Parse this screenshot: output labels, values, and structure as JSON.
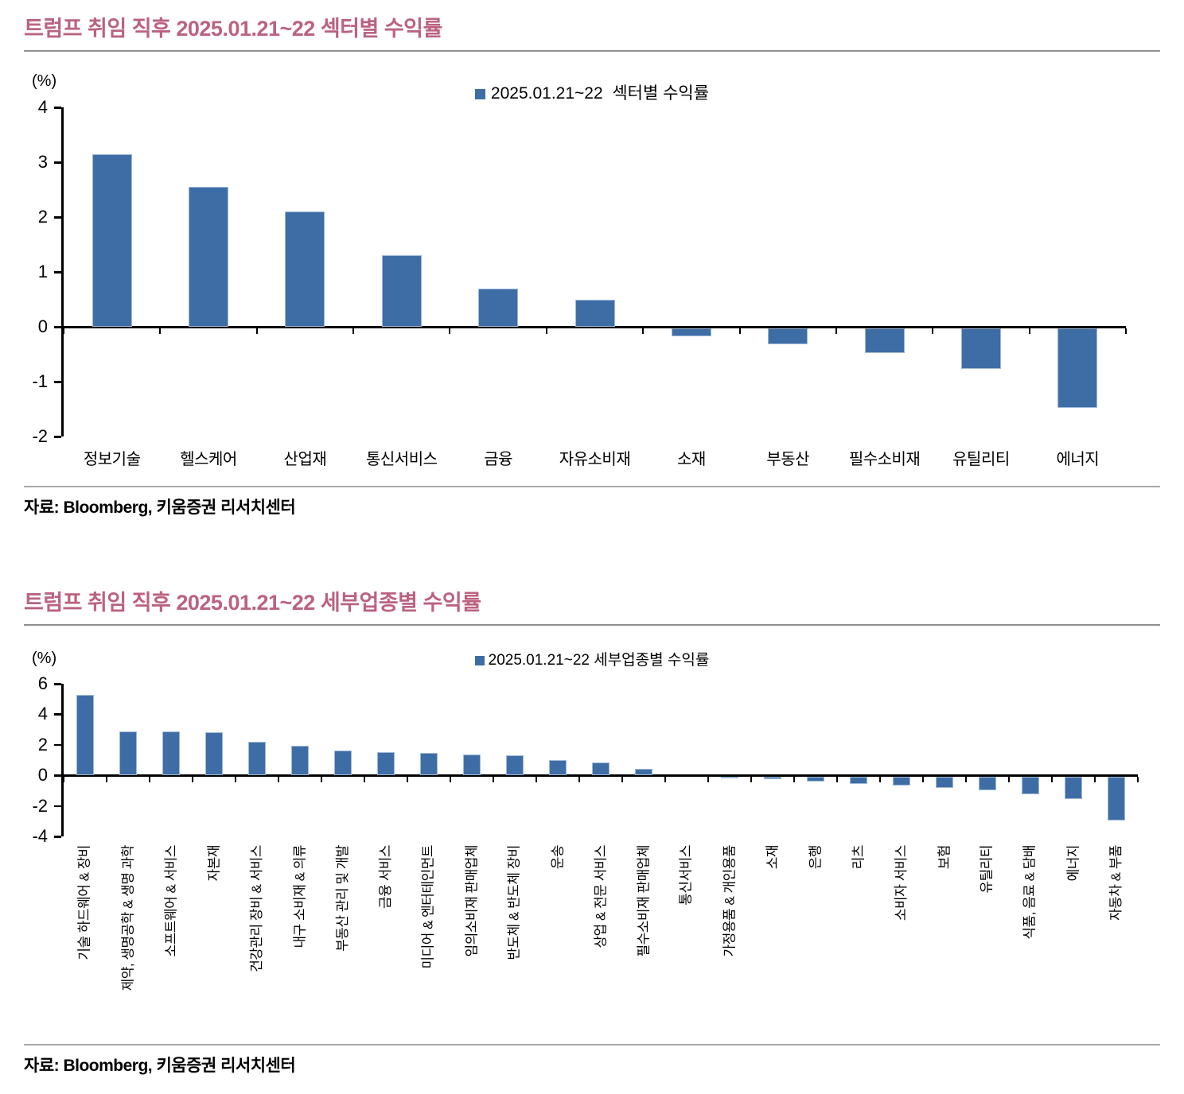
{
  "colors": {
    "bar": "#3E6DA5",
    "bar_border": "#9FB9D8",
    "title": "#BB6280",
    "axis": "#000000",
    "rule": "#8F8F8F"
  },
  "sources": [
    "자료: Bloomberg, 키움증권 리서치센터",
    "자료: Bloomberg, 키움증권 리서치센터"
  ],
  "chart_data": [
    {
      "type": "bar",
      "title": "트럼프 취임 직후 2025.01.21~22 섹터별 수익률",
      "legend_label": "2025.01.21~22  섹터별 수익률",
      "legend_position": "top-center",
      "unit_label": "(%)",
      "grid": false,
      "ylim": [
        -2,
        4
      ],
      "yticks": [
        4,
        3,
        2,
        1,
        0,
        -1,
        -2
      ],
      "categories": [
        "정보기술",
        "헬스케어",
        "산업재",
        "통신서비스",
        "금융",
        "자유소비재",
        "소재",
        "부동산",
        "필수소비재",
        "유틸리티",
        "에너지"
      ],
      "values": [
        3.15,
        2.55,
        2.1,
        1.3,
        0.7,
        0.5,
        -0.15,
        -0.3,
        -0.45,
        -0.75,
        -1.45
      ]
    },
    {
      "type": "bar",
      "title": "트럼프 취임 직후 2025.01.21~22 세부업종별 수익률",
      "legend_label": "2025.01.21~22 세부업종별 수익률",
      "legend_position": "top-center",
      "unit_label": "(%)",
      "grid": false,
      "ylim": [
        -4,
        6
      ],
      "yticks": [
        6,
        4,
        2,
        0,
        -2,
        -4
      ],
      "categories": [
        "기술 하드웨어 & 장비",
        "제약, 생명공학 & 생명 과학",
        "소프트웨어 & 서비스",
        "자본재",
        "건강관리 장비 & 서비스",
        "내구 소비재 & 의류",
        "부동산 관리 및 개발",
        "금융 서비스",
        "미디어 & 엔터테인먼트",
        "임의소비재 판매업체",
        "반도체 & 반도체 장비",
        "운송",
        "상업 & 전문 서비스",
        "필수소비재 판매업체",
        "통신서비스",
        "가정용품 & 개인용품",
        "소재",
        "은행",
        "리츠",
        "소비자 서비스",
        "보험",
        "유틸리티",
        "식품, 음료 & 담배",
        "에너지",
        "자동차 & 부품"
      ],
      "values": [
        5.25,
        2.9,
        2.85,
        2.8,
        2.2,
        1.95,
        1.65,
        1.5,
        1.45,
        1.35,
        1.3,
        1.0,
        0.85,
        0.45,
        0.0,
        -0.05,
        -0.15,
        -0.35,
        -0.5,
        -0.6,
        -0.75,
        -0.9,
        -1.15,
        -1.5,
        -2.9
      ]
    }
  ]
}
